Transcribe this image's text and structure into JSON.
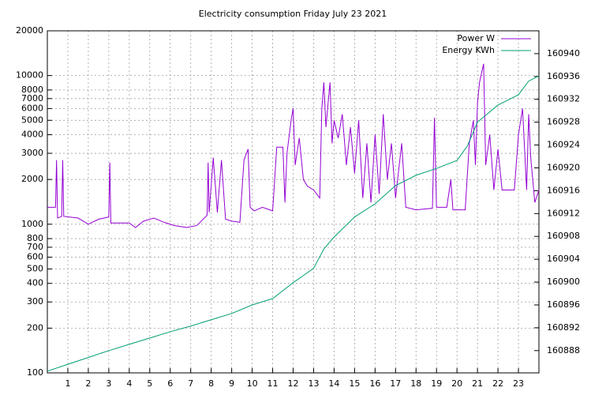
{
  "chart_data": {
    "type": "line",
    "title": "Electricity consumption Friday July 23 2021",
    "xlim": [
      0,
      24
    ],
    "xticks": [
      1,
      2,
      3,
      4,
      5,
      6,
      7,
      8,
      9,
      10,
      11,
      12,
      13,
      14,
      15,
      16,
      17,
      18,
      19,
      20,
      21,
      22,
      23
    ],
    "ylim": [
      100,
      20000
    ],
    "yscale": "log",
    "yticks": [
      100,
      200,
      300,
      400,
      500,
      600,
      700,
      800,
      1000,
      2000,
      3000,
      4000,
      5000,
      6000,
      7000,
      8000,
      10000,
      20000
    ],
    "y2lim": [
      160884.1,
      160944
    ],
    "y2ticks": [
      160888,
      160892,
      160896,
      160900,
      160904,
      160908,
      160912,
      160916,
      160920,
      160924,
      160928,
      160932,
      160936,
      160940
    ],
    "grid": true,
    "legend": "top-right",
    "series": [
      {
        "name": "Power W",
        "color": "#9400d3",
        "axis": "y",
        "x": [
          0,
          0.4,
          0.45,
          0.5,
          0.7,
          0.75,
          0.8,
          1.5,
          2,
          2.5,
          3,
          3.05,
          3.1,
          4,
          4.3,
          4.7,
          5.2,
          5.7,
          6.2,
          6.8,
          7.3,
          7.8,
          7.85,
          7.9,
          8.1,
          8.3,
          8.5,
          8.7,
          9,
          9.4,
          9.6,
          9.8,
          9.9,
          10.1,
          10.5,
          11,
          11.2,
          11.5,
          11.6,
          11.7,
          11.9,
          12,
          12.1,
          12.3,
          12.5,
          12.7,
          13,
          13.3,
          13.4,
          13.5,
          13.6,
          13.8,
          13.9,
          14,
          14.2,
          14.4,
          14.6,
          14.8,
          15,
          15.2,
          15.4,
          15.6,
          15.8,
          16,
          16.2,
          16.4,
          16.6,
          16.8,
          17,
          17.3,
          17.5,
          18,
          18.8,
          18.9,
          19,
          19.5,
          19.7,
          19.8,
          20.4,
          20.6,
          20.8,
          20.9,
          21,
          21.1,
          21.3,
          21.4,
          21.6,
          21.8,
          22,
          22.2,
          22.8,
          23,
          23.2,
          23.4,
          23.5,
          23.6,
          23.8,
          24
        ],
        "values": [
          1300,
          1300,
          2700,
          1100,
          1130,
          2700,
          1130,
          1100,
          1000,
          1080,
          1120,
          2600,
          1020,
          1020,
          950,
          1050,
          1100,
          1030,
          980,
          950,
          980,
          1150,
          2600,
          1200,
          2800,
          1200,
          2700,
          1080,
          1050,
          1030,
          2700,
          3200,
          1300,
          1230,
          1300,
          1230,
          3300,
          3300,
          1400,
          3000,
          5000,
          6000,
          2500,
          3800,
          2000,
          1800,
          1700,
          1500,
          6000,
          9000,
          4500,
          9000,
          3500,
          5000,
          3800,
          5500,
          2500,
          4500,
          2200,
          5000,
          1500,
          3500,
          1400,
          4000,
          1600,
          5500,
          2000,
          3500,
          1500,
          3500,
          1300,
          1250,
          1280,
          5200,
          1300,
          1300,
          2000,
          1250,
          1250,
          3500,
          5000,
          2500,
          6500,
          9000,
          12000,
          2500,
          4000,
          1700,
          3200,
          1700,
          1700,
          4000,
          6000,
          1700,
          5500,
          2800,
          1400,
          1700
        ]
      },
      {
        "name": "Energy KWh",
        "color": "#009e73",
        "axis": "y2",
        "x": [
          0,
          1,
          2,
          3,
          4,
          5,
          6,
          7,
          8,
          9,
          10,
          11,
          12,
          13,
          13.5,
          14,
          15,
          16,
          17,
          18,
          19,
          20,
          20.5,
          21,
          22,
          23,
          23.5,
          24
        ],
        "values": [
          160884.4,
          160885.6,
          160886.8,
          160888,
          160889.1,
          160890.2,
          160891.3,
          160892.3,
          160893.4,
          160894.5,
          160896,
          160897.1,
          160899.9,
          160902.4,
          160905.8,
          160907.9,
          160911.4,
          160913.7,
          160916.9,
          160918.7,
          160919.9,
          160921.3,
          160923.8,
          160928,
          160931,
          160932.8,
          160935.2,
          160936.1
        ]
      }
    ]
  }
}
